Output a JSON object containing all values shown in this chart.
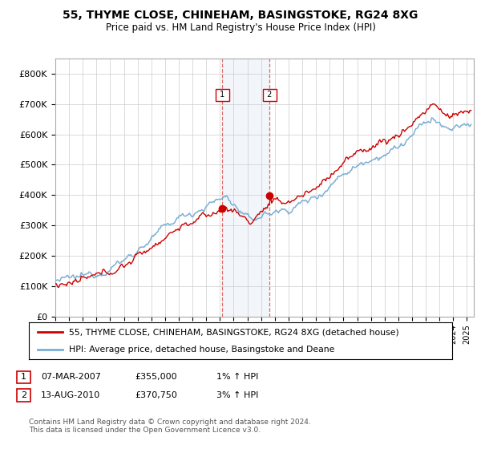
{
  "title": "55, THYME CLOSE, CHINEHAM, BASINGSTOKE, RG24 8XG",
  "subtitle": "Price paid vs. HM Land Registry's House Price Index (HPI)",
  "ylim": [
    0,
    850000
  ],
  "xlim_start": 1995.0,
  "xlim_end": 2025.5,
  "legend_line1": "55, THYME CLOSE, CHINEHAM, BASINGSTOKE, RG24 8XG (detached house)",
  "legend_line2": "HPI: Average price, detached house, Basingstoke and Deane",
  "transaction1_date": "07-MAR-2007",
  "transaction1_price": "£355,000",
  "transaction1_hpi": "1% ↑ HPI",
  "transaction1_year": 2007.18,
  "transaction1_value": 355000,
  "transaction2_date": "13-AUG-2010",
  "transaction2_price": "£370,750",
  "transaction2_hpi": "3% ↑ HPI",
  "transaction2_year": 2010.62,
  "transaction2_value": 370750,
  "hpi_color": "#7bafd4",
  "price_color": "#cc0000",
  "highlight_color": "#ddeeff",
  "marker_color": "#cc0000",
  "footer": "Contains HM Land Registry data © Crown copyright and database right 2024.\nThis data is licensed under the Open Government Licence v3.0.",
  "background_color": "#ffffff",
  "grid_color": "#cccccc",
  "label1": "1",
  "label2": "2"
}
